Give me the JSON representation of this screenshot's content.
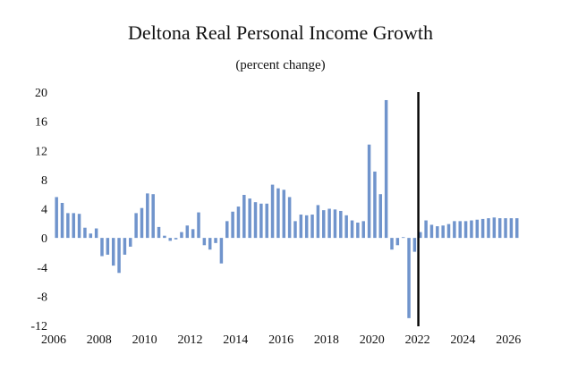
{
  "chart_data": {
    "type": "bar",
    "title": "Deltona Real Personal Income Growth",
    "subtitle": "(percent change)",
    "xlabel": "",
    "ylabel": "",
    "ylim": [
      -12,
      20
    ],
    "yticks": [
      "20",
      "16",
      "12",
      "8",
      "4",
      "0",
      "-4",
      "-8",
      "-12"
    ],
    "ytick_values": [
      20,
      16,
      12,
      8,
      4,
      0,
      -4,
      -8,
      -12
    ],
    "xticks": [
      "2006",
      "2008",
      "2010",
      "2012",
      "2014",
      "2016",
      "2018",
      "2020",
      "2022",
      "2024",
      "2026"
    ],
    "xtick_values": [
      2006,
      2008,
      2010,
      2012,
      2014,
      2016,
      2018,
      2020,
      2022,
      2024,
      2026
    ],
    "x_start": 2006.0,
    "bar_step": 0.25,
    "forecast_marker_x": 2022.0,
    "bar_color": "#7094cc",
    "marker_color": "#000000",
    "values": [
      5.6,
      4.8,
      3.4,
      3.4,
      3.3,
      1.4,
      0.6,
      1.3,
      -2.5,
      -2.3,
      -3.8,
      -4.8,
      -2.3,
      -1.2,
      3.4,
      4.1,
      6.1,
      6.0,
      1.5,
      0.3,
      -0.4,
      -0.2,
      0.8,
      1.7,
      1.2,
      3.5,
      -1.0,
      -1.6,
      -0.7,
      -3.5,
      2.3,
      3.6,
      4.3,
      5.9,
      5.4,
      4.9,
      4.7,
      4.7,
      7.3,
      6.8,
      6.6,
      5.6,
      2.3,
      3.2,
      3.1,
      3.2,
      4.5,
      3.8,
      4.0,
      3.9,
      3.7,
      3.1,
      2.4,
      2.1,
      2.3,
      12.8,
      9.1,
      6.0,
      18.9,
      -1.6,
      -1.0,
      0.1,
      -11.0,
      -1.9,
      0.8,
      2.4,
      1.8,
      1.6,
      1.7,
      1.9,
      2.3,
      2.3,
      2.3,
      2.4,
      2.5,
      2.6,
      2.7,
      2.8,
      2.7,
      2.7,
      2.7,
      2.7
    ]
  }
}
